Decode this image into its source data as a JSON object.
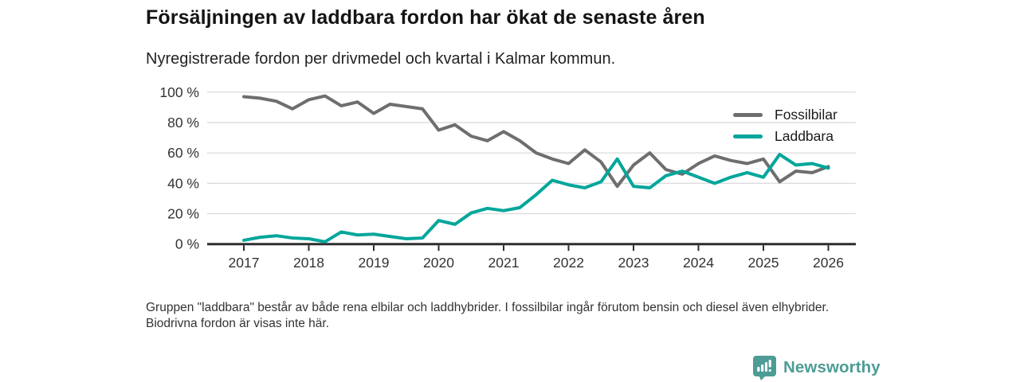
{
  "chart_data": {
    "type": "line",
    "title": "Försäljningen av laddbara fordon har ökat de senaste åren",
    "subtitle": "Nyregistrerade fordon per drivmedel och kvartal i Kalmar kommun.",
    "frequency": "quarterly",
    "x_first_point": "2017 Q1",
    "x_last_point": "2026 Q1",
    "x_tick_labels": [
      "2017",
      "2018",
      "2019",
      "2020",
      "2021",
      "2022",
      "2023",
      "2024",
      "2025",
      "2026"
    ],
    "y_tick_labels": [
      "0 %",
      "20 %",
      "40 %",
      "60 %",
      "80 %",
      "100 %"
    ],
    "ylim": [
      0,
      100
    ],
    "grid": true,
    "legend_position": "top-right",
    "series": [
      {
        "name": "Fossilbilar",
        "color": "#6e6e6e",
        "values": [
          97,
          96,
          94,
          89,
          95,
          97.5,
          91,
          93.5,
          86,
          92,
          90.5,
          89,
          75,
          78.5,
          71,
          68,
          74,
          68,
          60,
          56,
          53,
          62,
          54,
          38,
          52,
          60,
          49,
          46,
          53,
          58,
          55,
          53,
          56,
          41,
          48,
          47,
          51
        ]
      },
      {
        "name": "Laddbara",
        "color": "#00a69b",
        "values": [
          2.5,
          4.5,
          5.5,
          4,
          3.5,
          1.5,
          8,
          6,
          6.5,
          5,
          3.5,
          4,
          15.5,
          13,
          20.5,
          23.5,
          22,
          24,
          32.5,
          42,
          39,
          37,
          41,
          56,
          38,
          37,
          45,
          48,
          44,
          40,
          44,
          47,
          44,
          59,
          52,
          53,
          50
        ]
      }
    ]
  },
  "footnote": {
    "text": "Gruppen \"laddbara\" består av både rena elbilar och laddhybrider. I fossilbilar ingår förutom bensin och diesel även elhybrider. Biodrivna fordon är visas inte här."
  },
  "branding": {
    "name": "Newsworthy",
    "color": "#4d9c95",
    "icon": "bar-chart-speech-bubble-icon"
  }
}
